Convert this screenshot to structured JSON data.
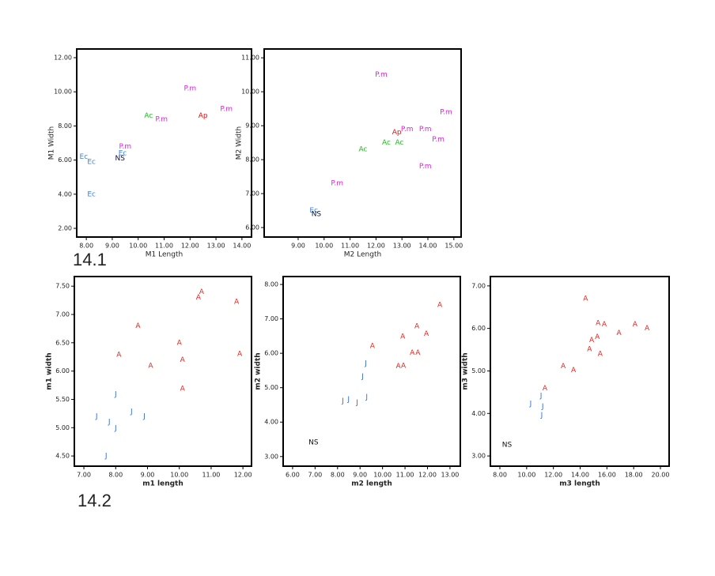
{
  "figure_labels": [
    "14.1",
    "14.2"
  ],
  "chart_data": [
    {
      "type": "scatter",
      "xlabel": "M1 Length",
      "ylabel": "M1 Width",
      "xlim": [
        7.63,
        14.37
      ],
      "ylim": [
        1.49,
        12.51
      ],
      "xticks": [
        {
          "value": 8,
          "label": "8.00"
        },
        {
          "value": 9,
          "label": "9.00"
        },
        {
          "value": 10,
          "label": "10.00"
        },
        {
          "value": 11,
          "label": "11.00"
        },
        {
          "value": 12,
          "label": "12.00"
        },
        {
          "value": 13,
          "label": "13.00"
        },
        {
          "value": 14,
          "label": "14.00"
        }
      ],
      "yticks": [
        {
          "value": 2,
          "label": "2.00"
        },
        {
          "value": 4,
          "label": "4.00"
        },
        {
          "value": 6,
          "label": "6.00"
        },
        {
          "value": 8,
          "label": "8.00"
        },
        {
          "value": 10,
          "label": "10.00"
        },
        {
          "value": 12,
          "label": "12.00"
        }
      ],
      "series": [
        {
          "name": "Ec",
          "color": "#3f7fe0",
          "x": [
            7.9,
            8.2,
            8.2,
            9.4
          ],
          "values": [
            6.2,
            5.9,
            4.0,
            6.4
          ]
        },
        {
          "name": "P.m",
          "color": "#dd22dd",
          "x": [
            9.5,
            10.9,
            12.0,
            13.4
          ],
          "values": [
            6.8,
            8.4,
            10.2,
            9.0
          ]
        },
        {
          "name": "Ac",
          "color": "#22bb22",
          "x": [
            10.4
          ],
          "values": [
            8.6
          ]
        },
        {
          "name": "Ap",
          "color": "#dd1111",
          "x": [
            12.5
          ],
          "values": [
            8.6
          ]
        },
        {
          "name": "NS",
          "color": "#111133",
          "x": [
            9.3
          ],
          "values": [
            6.1
          ]
        }
      ]
    },
    {
      "type": "scatter",
      "xlabel": "M2 Length",
      "ylabel": "M2 Width",
      "xlim": [
        7.69,
        15.28
      ],
      "ylim": [
        5.72,
        11.26
      ],
      "xticks": [
        {
          "value": 9,
          "label": "9.00"
        },
        {
          "value": 10,
          "label": "10.00"
        },
        {
          "value": 11,
          "label": "11.00"
        },
        {
          "value": 12,
          "label": "12.00"
        },
        {
          "value": 13,
          "label": "13.00"
        },
        {
          "value": 14,
          "label": "14.00"
        },
        {
          "value": 15,
          "label": "15.00"
        }
      ],
      "yticks": [
        {
          "value": 6,
          "label": "6.00"
        },
        {
          "value": 7,
          "label": "7.00"
        },
        {
          "value": 8,
          "label": "8.00"
        },
        {
          "value": 9,
          "label": "9.00"
        },
        {
          "value": 10,
          "label": "10.00"
        },
        {
          "value": 11,
          "label": "11.00"
        }
      ],
      "series": [
        {
          "name": "P.m",
          "color": "#dd22dd",
          "x": [
            12.2,
            14.7,
            13.2,
            13.9,
            14.4,
            13.9,
            10.5
          ],
          "values": [
            10.5,
            9.4,
            8.9,
            8.9,
            8.6,
            7.8,
            7.3
          ]
        },
        {
          "name": "Ap",
          "color": "#dd1111",
          "x": [
            12.8
          ],
          "values": [
            8.8
          ]
        },
        {
          "name": "Ac",
          "color": "#22bb22",
          "x": [
            12.4,
            12.9,
            11.5
          ],
          "values": [
            8.5,
            8.5,
            8.3
          ]
        },
        {
          "name": "Ec",
          "color": "#3f7fe0",
          "x": [
            9.6
          ],
          "values": [
            6.5
          ]
        },
        {
          "name": "NS",
          "color": "#111133",
          "x": [
            9.7
          ],
          "values": [
            6.4
          ]
        }
      ]
    },
    {
      "type": "scatter",
      "xlabel": "m1 length",
      "ylabel": "m1 width",
      "xlim": [
        6.7,
        12.27
      ],
      "ylim": [
        4.32,
        7.67
      ],
      "xticks": [
        {
          "value": 7,
          "label": "7.00"
        },
        {
          "value": 8,
          "label": "8.00"
        },
        {
          "value": 9,
          "label": "9.00"
        },
        {
          "value": 10,
          "label": "10.00"
        },
        {
          "value": 11,
          "label": "11.00"
        },
        {
          "value": 12,
          "label": "12.00"
        }
      ],
      "yticks": [
        {
          "value": 4.5,
          "label": "4.50"
        },
        {
          "value": 5,
          "label": "5.00"
        },
        {
          "value": 5.5,
          "label": "5.50"
        },
        {
          "value": 6,
          "label": "6.00"
        },
        {
          "value": 6.5,
          "label": "6.50"
        },
        {
          "value": 7,
          "label": "7.00"
        },
        {
          "value": 7.5,
          "label": "7.50"
        }
      ],
      "series": [
        {
          "name": "A",
          "color": "#e8251f",
          "x": [
            10.7,
            10.6,
            11.8,
            8.7,
            10.0,
            8.1,
            11.9,
            10.1,
            9.1,
            10.1
          ],
          "values": [
            7.4,
            7.3,
            7.22,
            6.8,
            6.5,
            6.29,
            6.3,
            6.2,
            6.09,
            5.69
          ]
        },
        {
          "name": "J",
          "color": "#2f6fd6",
          "x": [
            8.0,
            7.4,
            8.5,
            8.9,
            7.8,
            8.0,
            7.7
          ],
          "values": [
            5.59,
            5.2,
            5.28,
            5.2,
            5.1,
            4.99,
            4.5
          ]
        }
      ]
    },
    {
      "type": "scatter",
      "xlabel": "m2 length",
      "ylabel": "m2 width",
      "xlim": [
        5.58,
        13.46
      ],
      "ylim": [
        2.72,
        8.23
      ],
      "xticks": [
        {
          "value": 6,
          "label": "6.00"
        },
        {
          "value": 7,
          "label": "7.00"
        },
        {
          "value": 8,
          "label": "8.00"
        },
        {
          "value": 9,
          "label": "9.00"
        },
        {
          "value": 10,
          "label": "10.00"
        },
        {
          "value": 11,
          "label": "11.00"
        },
        {
          "value": 12,
          "label": "12.00"
        },
        {
          "value": 13,
          "label": "13.00"
        }
      ],
      "yticks": [
        {
          "value": 3,
          "label": "3.00"
        },
        {
          "value": 4,
          "label": "4.00"
        },
        {
          "value": 5,
          "label": "5.00"
        },
        {
          "value": 6,
          "label": "6.00"
        },
        {
          "value": 7,
          "label": "7.00"
        },
        {
          "value": 8,
          "label": "8.00"
        }
      ],
      "series": [
        {
          "name": "A",
          "color": "#e8251f",
          "x": [
            12.55,
            11.53,
            10.9,
            11.95,
            9.55,
            11.32,
            11.57,
            10.93,
            10.7
          ],
          "values": [
            7.4,
            6.78,
            6.48,
            6.57,
            6.21,
            6.01,
            6.01,
            5.64,
            5.62
          ]
        },
        {
          "name": "J",
          "color": "#2f6fd6",
          "x": [
            9.26,
            9.12,
            9.3,
            8.49,
            8.24,
            8.87
          ],
          "values": [
            5.71,
            5.33,
            4.73,
            4.66,
            4.61,
            4.57
          ]
        },
        {
          "name": "NS",
          "color": "#111111",
          "x": [
            6.93
          ],
          "values": [
            3.41
          ]
        }
      ]
    },
    {
      "type": "scatter",
      "xlabel": "m3 length",
      "ylabel": "m3 width",
      "xlim": [
        7.29,
        20.65
      ],
      "ylim": [
        2.76,
        7.22
      ],
      "xticks": [
        {
          "value": 8,
          "label": "8.00"
        },
        {
          "value": 10,
          "label": "10.00"
        },
        {
          "value": 12,
          "label": "12.00"
        },
        {
          "value": 14,
          "label": "14.00"
        },
        {
          "value": 16,
          "label": "16.00"
        },
        {
          "value": 18,
          "label": "18.00"
        },
        {
          "value": 20,
          "label": "20.00"
        }
      ],
      "yticks": [
        {
          "value": 3,
          "label": "3.00"
        },
        {
          "value": 4,
          "label": "4.00"
        },
        {
          "value": 5,
          "label": "5.00"
        },
        {
          "value": 6,
          "label": "6.00"
        },
        {
          "value": 7,
          "label": "7.00"
        }
      ],
      "series": [
        {
          "name": "A",
          "color": "#e8251f",
          "x": [
            14.4,
            15.34,
            15.8,
            18.1,
            19.0,
            16.9,
            15.28,
            14.86,
            15.5,
            14.7,
            12.73,
            13.5,
            11.37
          ],
          "values": [
            6.7,
            6.12,
            6.1,
            6.1,
            6.0,
            5.89,
            5.8,
            5.72,
            5.4,
            5.51,
            5.11,
            5.02,
            4.59
          ]
        },
        {
          "name": "J",
          "color": "#2f6fd6",
          "x": [
            11.08,
            10.3,
            11.2,
            11.13
          ],
          "values": [
            4.41,
            4.23,
            4.16,
            3.96
          ]
        },
        {
          "name": "NS",
          "color": "#111111",
          "x": [
            8.53
          ],
          "values": [
            3.26
          ]
        }
      ]
    }
  ]
}
